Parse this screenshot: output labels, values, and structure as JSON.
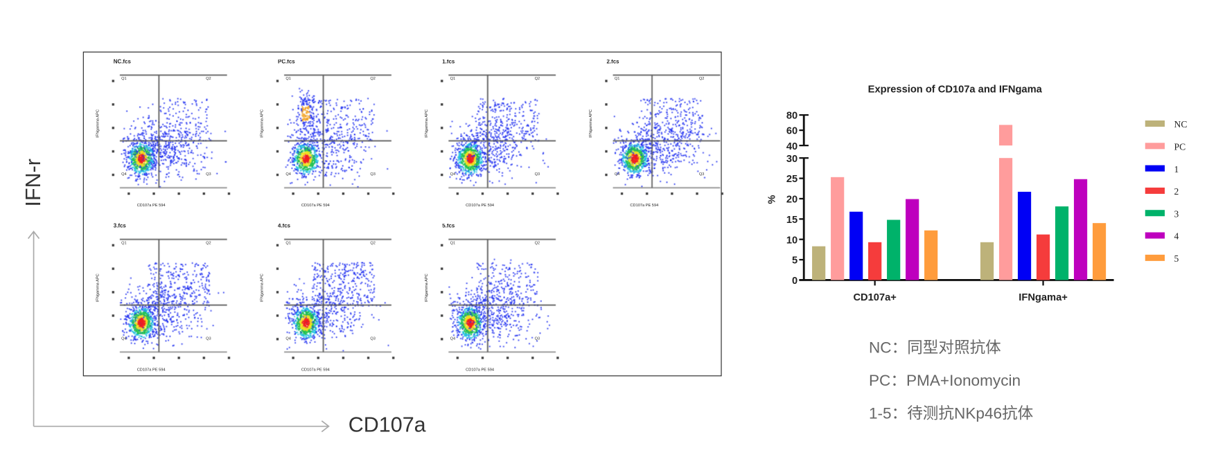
{
  "axis_labels": {
    "y": "IFN-r",
    "x": "CD107a"
  },
  "flow_plots": [
    {
      "title": "NC.fcs"
    },
    {
      "title": "PC.fcs"
    },
    {
      "title": "1.fcs"
    },
    {
      "title": "2.fcs"
    },
    {
      "title": "3.fcs"
    },
    {
      "title": "4.fcs"
    },
    {
      "title": "5.fcs"
    }
  ],
  "flow_quadrants": [
    "Q1",
    "Q2",
    "Q4",
    "Q3"
  ],
  "flow_axis": {
    "y": "IFNgamma APC",
    "x": "CD107a PE 594"
  },
  "chart_data": {
    "type": "bar",
    "title": "Expression of CD107a and IFNgama",
    "xlabel": "",
    "ylabel": "%",
    "categories": [
      "CD107a+",
      "IFNgama+"
    ],
    "ylim": [
      0,
      80
    ],
    "axis_break": [
      30,
      40
    ],
    "yticks_lower": [
      0,
      5,
      10,
      15,
      20,
      25,
      30
    ],
    "yticks_upper": [
      40,
      60,
      80
    ],
    "legend_position": "right",
    "series": [
      {
        "name": "NC",
        "color": "#bdb27a",
        "values": [
          8.3,
          9.3
        ]
      },
      {
        "name": "PC",
        "color": "#ff9c9c",
        "values": [
          25.3,
          67
        ]
      },
      {
        "name": "1",
        "color": "#0000f5",
        "values": [
          16.8,
          21.7
        ]
      },
      {
        "name": "2",
        "color": "#f53c3c",
        "values": [
          9.3,
          11.2
        ]
      },
      {
        "name": "3",
        "color": "#00b26a",
        "values": [
          14.8,
          18.1
        ]
      },
      {
        "name": "4",
        "color": "#be00be",
        "values": [
          19.9,
          24.8
        ]
      },
      {
        "name": "5",
        "color": "#ff9c3c",
        "values": [
          12.2,
          14.0
        ]
      }
    ]
  },
  "notes": [
    "NC：同型对照抗体",
    "PC：PMA+Ionomycin",
    "1-5：待测抗NKp46抗体"
  ]
}
